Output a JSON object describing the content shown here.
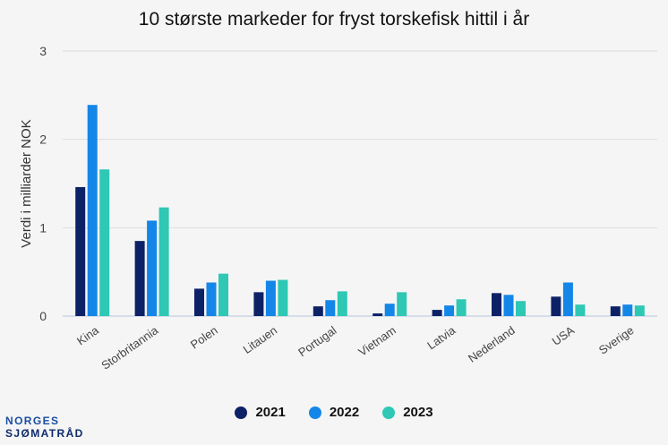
{
  "chart_data": {
    "type": "bar",
    "title": "10 største markeder for fryst torskefisk hittil i år",
    "ylabel": "Verdi i milliarder NOK",
    "xlabel": "",
    "ylim": [
      0,
      3
    ],
    "yticks": [
      0,
      1,
      2,
      3
    ],
    "grid": true,
    "legend_position": "bottom",
    "categories": [
      "Kina",
      "Storbritannia",
      "Polen",
      "Litauen",
      "Portugal",
      "Vietnam",
      "Latvia",
      "Nederland",
      "USA",
      "Sverige"
    ],
    "series": [
      {
        "name": "2021",
        "color": "#0d2266",
        "values": [
          1.46,
          0.85,
          0.31,
          0.27,
          0.11,
          0.03,
          0.07,
          0.26,
          0.22,
          0.11
        ]
      },
      {
        "name": "2022",
        "color": "#1486e8",
        "values": [
          2.39,
          1.08,
          0.38,
          0.4,
          0.18,
          0.14,
          0.12,
          0.24,
          0.38,
          0.13
        ]
      },
      {
        "name": "2023",
        "color": "#2ec8b5",
        "values": [
          1.66,
          1.23,
          0.48,
          0.41,
          0.28,
          0.27,
          0.19,
          0.17,
          0.13,
          0.12
        ]
      }
    ]
  },
  "brand": {
    "line1": "NORGES",
    "line2": "SJØMATRÅD"
  }
}
